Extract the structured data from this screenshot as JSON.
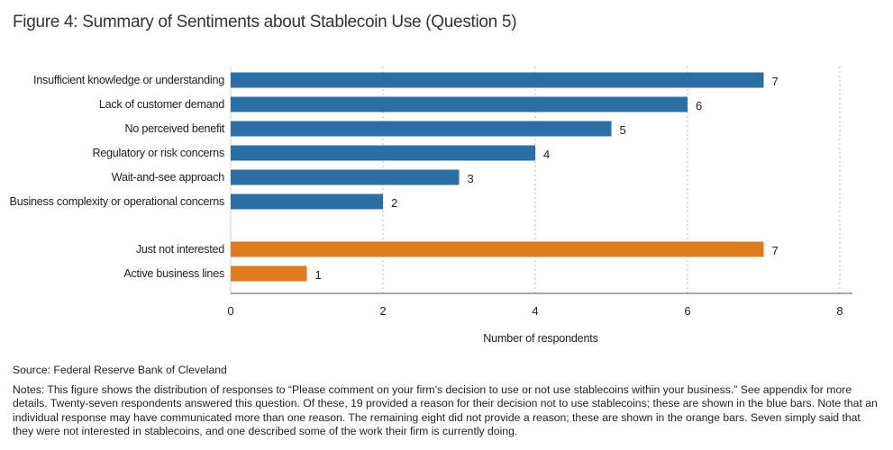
{
  "title": "Figure 4: Summary of Sentiments about Stablecoin Use (Question 5)",
  "chart_data": {
    "type": "bar",
    "orientation": "horizontal",
    "categories": [
      "Insufficient knowledge or understanding",
      "Lack of customer demand",
      "No perceived benefit",
      "Regulatory or risk concerns",
      "Wait-and-see approach",
      "Business complexity or operational concerns",
      "Just not interested",
      "Active business lines"
    ],
    "values": [
      7,
      6,
      5,
      4,
      3,
      2,
      7,
      1
    ],
    "group": [
      "reason",
      "reason",
      "reason",
      "reason",
      "reason",
      "reason",
      "no-reason",
      "no-reason"
    ],
    "colors": {
      "reason": "#2a6fa5",
      "no-reason": "#e07a1e"
    },
    "xlabel": "Number of respondents",
    "xlim": [
      0,
      8
    ],
    "xticks": [
      0,
      2,
      4,
      6,
      8
    ],
    "grid": true,
    "data_labels": true
  },
  "source": "Source: Federal Reserve Bank of Cleveland",
  "notes": "Notes: This figure shows the distribution of responses to “Please comment on your firm’s decision to use or not use stablecoins within your business.” See appendix for more details. Twenty-seven respondents answered this question. Of these, 19 provided a reason for their decision not to use stablecoins; these are shown in the blue bars. Note that an individual response may have communicated more than one reason. The remaining eight did not provide a reason; these are shown in the orange bars. Seven simply said that they were not interested in stablecoins, and one described some of the work their firm is currently doing."
}
